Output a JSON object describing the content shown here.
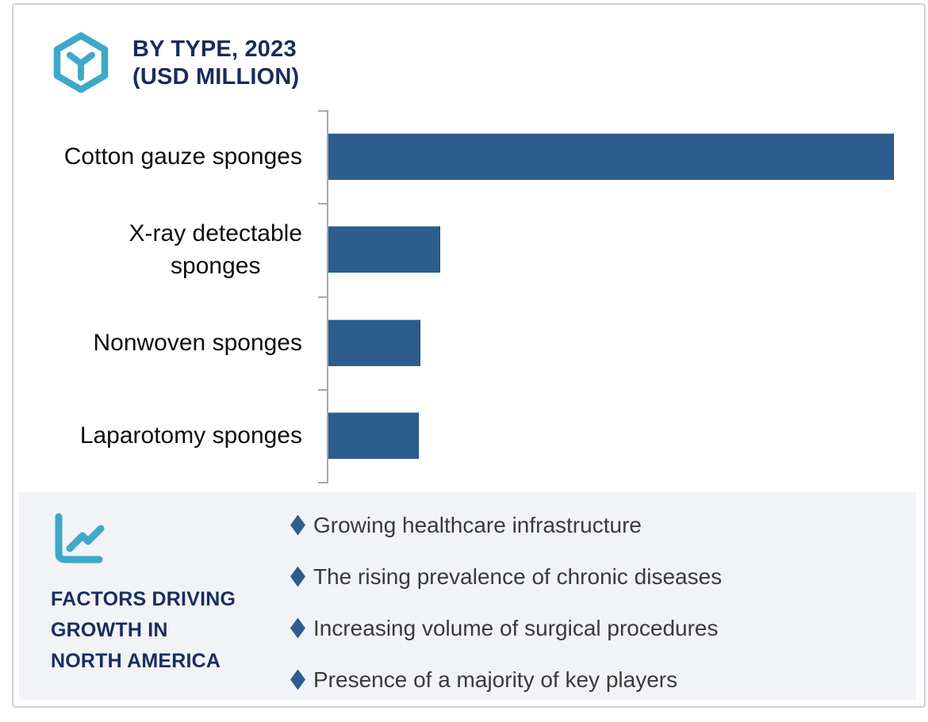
{
  "header": {
    "title_line1": "BY TYPE, 2023",
    "title_line2": "(USD MILLION)",
    "icon": "hexagon-cube-icon"
  },
  "chart_data": {
    "type": "bar",
    "orientation": "horizontal",
    "title": "BY TYPE, 2023 (USD MILLION)",
    "value_unit": "USD Million",
    "categories": [
      "Cotton gauze sponges",
      "X-ray detectable\nsponges",
      "Nonwoven sponges",
      "Laparotomy sponges"
    ],
    "values_pct_of_max": [
      100,
      19.8,
      16.3,
      16.0
    ],
    "value_axis_labels_visible": false,
    "gridlines": false,
    "legend": false,
    "bar_color": "#2d5d8d",
    "axis_color": "#a9a9a9"
  },
  "factors": {
    "icon": "line-chart-icon",
    "heading": "FACTORS DRIVING\nGROWTH IN\nNORTH AMERICA",
    "items": [
      "Growing healthcare infrastructure",
      "The rising prevalence of chronic diseases",
      "Increasing volume of surgical procedures",
      "Presence of a majority of key players"
    ],
    "bullet_glyph": "diamond",
    "bullet_color": "#2d5d8d"
  },
  "colors": {
    "navy": "#1b2b5c",
    "teal": "#3da9c9",
    "bar_blue": "#2d5d8d",
    "panel_bg": "#f1f3f7",
    "frame_border": "#cfd3d9",
    "body_text": "#3a3a3a"
  }
}
